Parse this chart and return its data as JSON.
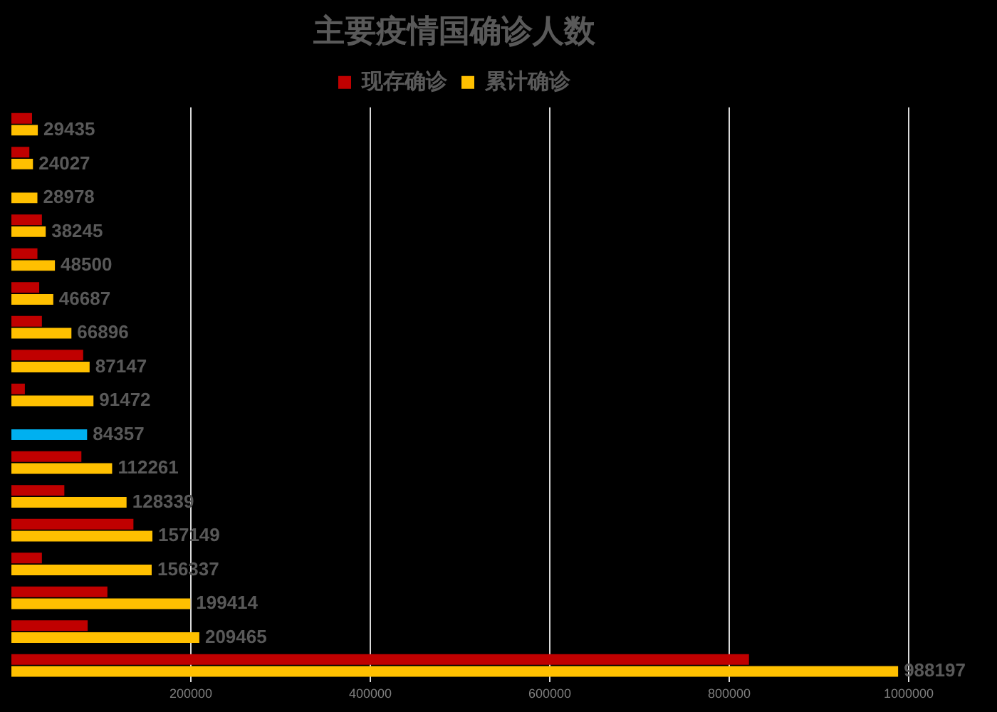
{
  "chart_data": {
    "type": "bar",
    "orientation": "horizontal",
    "title": "主要疫情国确诊人数",
    "categories": [
      null,
      null,
      null,
      null,
      null,
      null,
      null,
      null,
      null,
      null,
      null,
      null,
      null,
      null,
      null,
      null,
      null
    ],
    "series": [
      {
        "name": "现存确诊",
        "color": "#c00000",
        "values": [
          23000,
          20000,
          null,
          34000,
          29000,
          31000,
          34000,
          80000,
          15000,
          null,
          78000,
          59000,
          136000,
          34000,
          107000,
          85000,
          822000
        ]
      },
      {
        "name": "累计确诊",
        "color": "#ffc000",
        "colors": [
          "#ffc000",
          "#ffc000",
          "#ffc000",
          "#ffc000",
          "#ffc000",
          "#ffc000",
          "#ffc000",
          "#ffc000",
          "#ffc000",
          "#00b0f0",
          "#ffc000",
          "#ffc000",
          "#ffc000",
          "#ffc000",
          "#ffc000",
          "#ffc000",
          "#ffc000"
        ],
        "values": [
          29435,
          24027,
          28978,
          38245,
          48500,
          46687,
          66896,
          87147,
          91472,
          84357,
          112261,
          128339,
          157149,
          156337,
          199414,
          209465,
          988197
        ],
        "value_labels": [
          "29435",
          "24027",
          "28978",
          "38245",
          "48500",
          "46687",
          "66896",
          "87147",
          "91472",
          "84357",
          "112261",
          "128339",
          "157149",
          "156337",
          "199414",
          "209465",
          "988197"
        ]
      }
    ],
    "xlim": [
      0,
      1000000
    ],
    "xticks": [
      200000,
      400000,
      600000,
      800000,
      1000000
    ],
    "grid": "x",
    "legend": "top",
    "tick_labels": "x"
  }
}
